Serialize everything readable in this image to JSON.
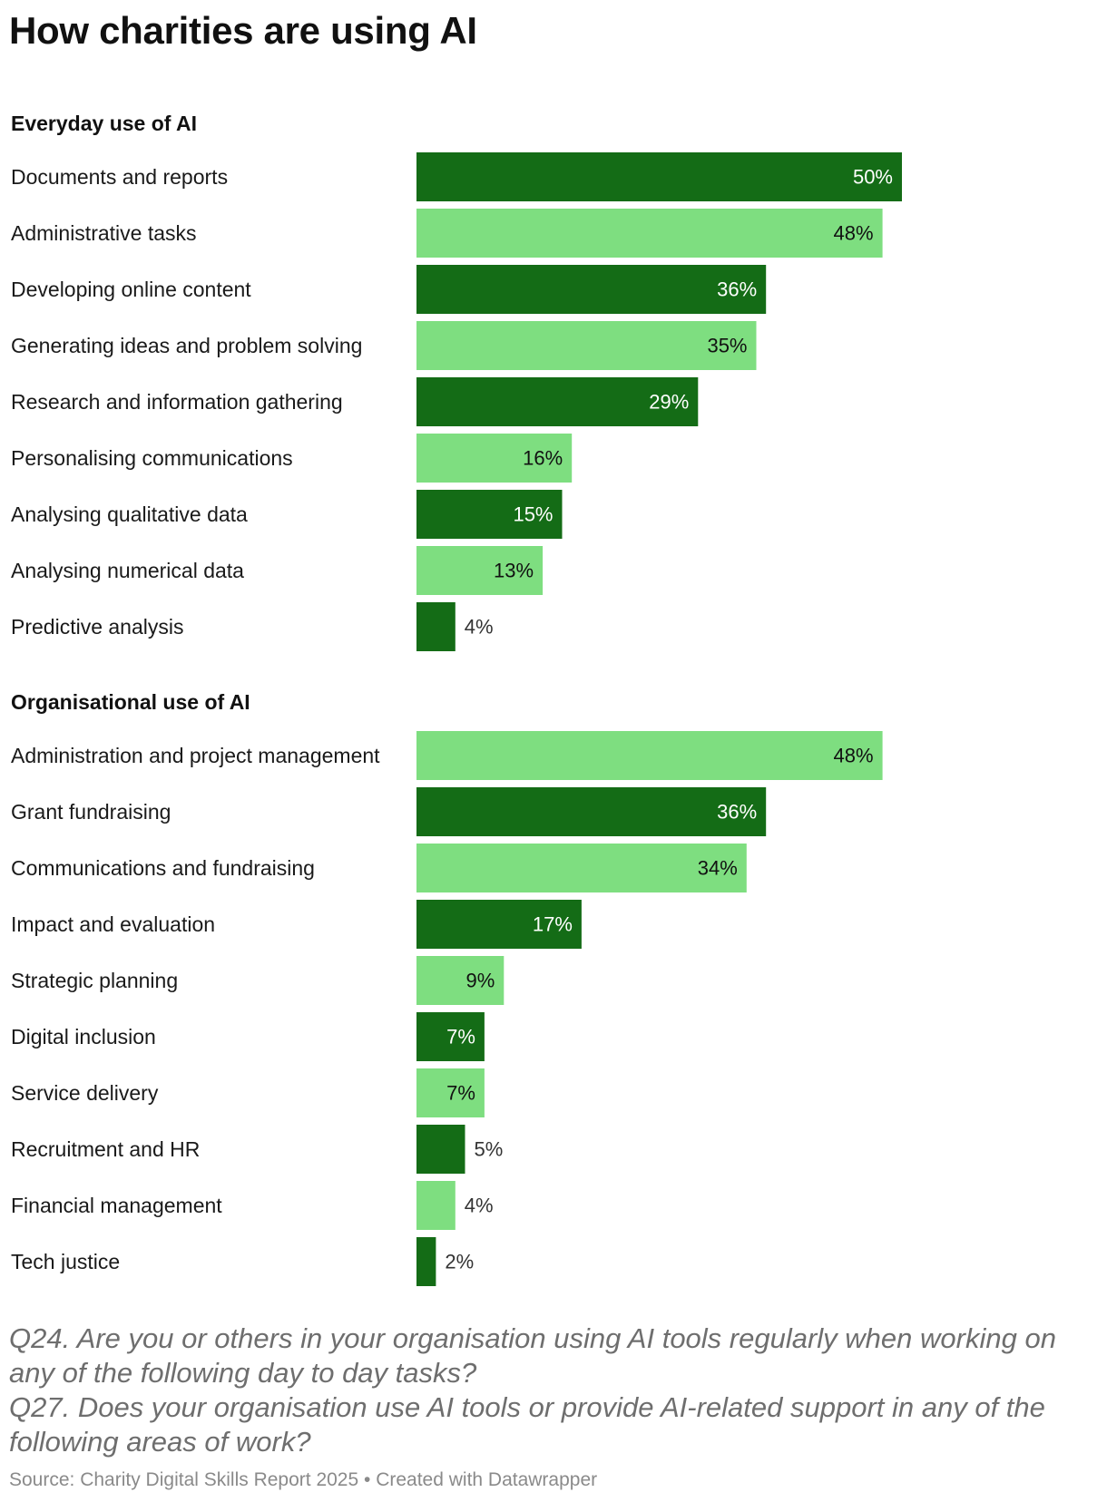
{
  "title": "How charities are using AI",
  "colors": {
    "dark": "#146c16",
    "light": "#7ede80",
    "text": "#111111",
    "notes": "#6e6e6e",
    "source": "#8a8a8a"
  },
  "notes": {
    "q24": "Q24. Are you or others in your organisation using AI tools regularly when working on any of the following day to day tasks?",
    "q27": "Q27. Does your organisation use AI tools or provide AI-related support in any of the following areas of work?"
  },
  "source": "Source: Charity Digital Skills Report 2025 • Created with Datawrapper",
  "chart_data": [
    {
      "type": "bar",
      "orientation": "horizontal",
      "title": "Everyday use of AI",
      "unit": "%",
      "xlim": [
        0,
        50
      ],
      "categories": [
        "Documents and reports",
        "Administrative tasks",
        "Developing online content",
        "Generating ideas and problem solving",
        "Research and information gathering",
        "Personalising communications",
        "Analysing qualitative data",
        "Analysing numerical data",
        "Predictive analysis"
      ],
      "values": [
        50,
        48,
        36,
        35,
        29,
        16,
        15,
        13,
        4
      ]
    },
    {
      "type": "bar",
      "orientation": "horizontal",
      "title": "Organisational use of AI",
      "unit": "%",
      "xlim": [
        0,
        50
      ],
      "categories": [
        "Administration and project management",
        "Grant fundraising",
        "Communications and fundraising",
        "Impact and evaluation",
        "Strategic planning",
        "Digital inclusion",
        "Service delivery",
        "Recruitment and HR",
        "Financial management",
        "Tech justice"
      ],
      "values": [
        48,
        36,
        34,
        17,
        9,
        7,
        7,
        5,
        4,
        2
      ]
    }
  ]
}
